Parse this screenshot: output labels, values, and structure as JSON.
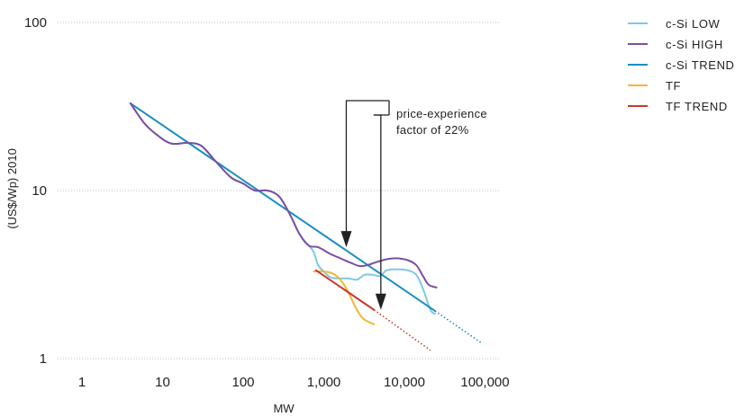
{
  "chart_data": {
    "type": "line",
    "xscale": "log",
    "yscale": "log",
    "xlabel": "MW",
    "ylabel": "(US$/Wp) 2010",
    "xlim": [
      1,
      100000
    ],
    "ylim": [
      1,
      100
    ],
    "x_ticks": [
      {
        "value": 1,
        "label": "1"
      },
      {
        "value": 10,
        "label": "10"
      },
      {
        "value": 100,
        "label": "100"
      },
      {
        "value": 1000,
        "label": "1,000"
      },
      {
        "value": 10000,
        "label": "10,000"
      },
      {
        "value": 100000,
        "label": "100,000"
      }
    ],
    "y_ticks": [
      {
        "value": 1,
        "label": "1"
      },
      {
        "value": 10,
        "label": "10"
      },
      {
        "value": 100,
        "label": "100"
      }
    ],
    "grid": "horizontal dotted",
    "legend_position": "top-right",
    "annotation": {
      "lines": [
        "price-experience",
        "factor of 22%"
      ],
      "arrow_targets": [
        {
          "x": 1900,
          "y": 4.6
        },
        {
          "x": 5100,
          "y": 1.95
        }
      ]
    },
    "series": [
      {
        "name": "c-Si LOW",
        "color": "#7ec8e3",
        "points": [
          [
            4,
            33
          ],
          [
            6,
            25
          ],
          [
            9,
            21
          ],
          [
            13,
            19
          ],
          [
            20,
            19.2
          ],
          [
            30,
            18.5
          ],
          [
            45,
            15
          ],
          [
            70,
            12
          ],
          [
            100,
            11
          ],
          [
            140,
            10
          ],
          [
            200,
            10
          ],
          [
            280,
            9.2
          ],
          [
            380,
            7.2
          ],
          [
            500,
            5.5
          ],
          [
            650,
            4.7
          ],
          [
            750,
            4.3
          ],
          [
            850,
            3.6
          ],
          [
            1000,
            3.3
          ],
          [
            1200,
            3.05
          ],
          [
            1500,
            3.0
          ],
          [
            2000,
            3.0
          ],
          [
            2600,
            2.95
          ],
          [
            3200,
            3.15
          ],
          [
            4000,
            3.15
          ],
          [
            5000,
            3.1
          ],
          [
            6000,
            3.35
          ],
          [
            8000,
            3.4
          ],
          [
            11000,
            3.35
          ],
          [
            14000,
            3.15
          ],
          [
            17000,
            2.6
          ],
          [
            21000,
            1.95
          ],
          [
            24000,
            1.85
          ]
        ]
      },
      {
        "name": "c-Si HIGH",
        "color": "#7b4fa0",
        "points": [
          [
            4,
            33
          ],
          [
            6,
            25
          ],
          [
            9,
            21
          ],
          [
            13,
            19
          ],
          [
            20,
            19.2
          ],
          [
            30,
            18.5
          ],
          [
            45,
            15
          ],
          [
            70,
            12
          ],
          [
            100,
            11
          ],
          [
            140,
            10
          ],
          [
            200,
            10
          ],
          [
            280,
            9.2
          ],
          [
            380,
            7.2
          ],
          [
            500,
            5.5
          ],
          [
            650,
            4.7
          ],
          [
            850,
            4.6
          ],
          [
            1200,
            4.2
          ],
          [
            1600,
            3.95
          ],
          [
            2200,
            3.7
          ],
          [
            2800,
            3.55
          ],
          [
            3500,
            3.6
          ],
          [
            4500,
            3.75
          ],
          [
            6000,
            3.9
          ],
          [
            8000,
            3.95
          ],
          [
            11000,
            3.85
          ],
          [
            14000,
            3.6
          ],
          [
            17000,
            3.1
          ],
          [
            20000,
            2.75
          ],
          [
            25000,
            2.65
          ]
        ]
      },
      {
        "name": "c-Si TREND",
        "color": "#1a8ec4",
        "points": [
          [
            4,
            33
          ],
          [
            24000,
            1.92
          ]
        ],
        "projection": [
          [
            24000,
            1.92
          ],
          [
            90000,
            1.24
          ]
        ]
      },
      {
        "name": "TF",
        "color": "#f2b636",
        "points": [
          [
            750,
            3.3
          ],
          [
            1000,
            3.3
          ],
          [
            1300,
            3.2
          ],
          [
            1600,
            2.95
          ],
          [
            2000,
            2.5
          ],
          [
            2500,
            2.0
          ],
          [
            3000,
            1.75
          ],
          [
            3600,
            1.65
          ],
          [
            4200,
            1.6
          ]
        ]
      },
      {
        "name": "TF TREND",
        "color": "#c83a2c",
        "points": [
          [
            800,
            3.35
          ],
          [
            4200,
            1.95
          ]
        ],
        "projection": [
          [
            4200,
            1.95
          ],
          [
            21000,
            1.12
          ]
        ]
      }
    ]
  }
}
